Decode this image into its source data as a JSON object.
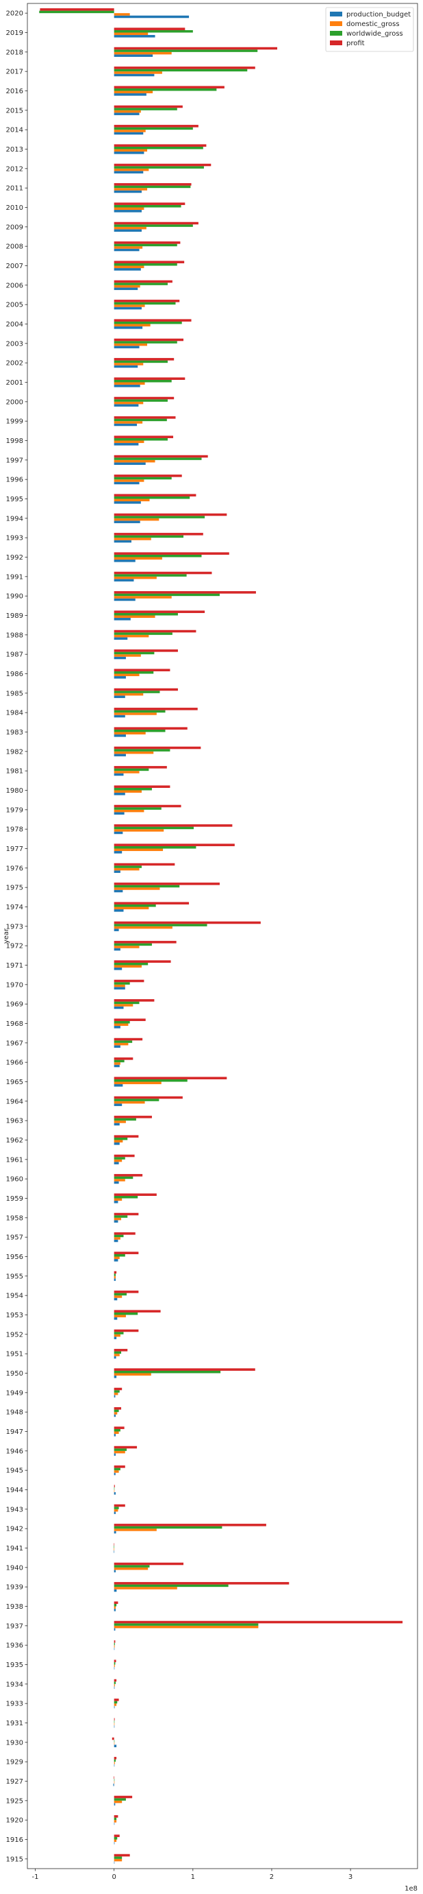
{
  "chart_data": {
    "type": "bar",
    "orientation": "horizontal",
    "ylabel": "year",
    "x_offset_label": "1e8",
    "x_ticks": [
      -1,
      0,
      1,
      2,
      3
    ],
    "x_tick_scale": 100000000,
    "xlim": [
      -110000000,
      385000000
    ],
    "legend_position": "top-right",
    "categories": [
      "1915",
      "1916",
      "1920",
      "1925",
      "1927",
      "1929",
      "1930",
      "1931",
      "1933",
      "1934",
      "1935",
      "1936",
      "1937",
      "1938",
      "1939",
      "1940",
      "1941",
      "1942",
      "1943",
      "1944",
      "1945",
      "1946",
      "1947",
      "1948",
      "1949",
      "1950",
      "1951",
      "1952",
      "1953",
      "1954",
      "1955",
      "1956",
      "1957",
      "1958",
      "1959",
      "1960",
      "1961",
      "1962",
      "1963",
      "1964",
      "1965",
      "1966",
      "1967",
      "1968",
      "1969",
      "1970",
      "1971",
      "1972",
      "1973",
      "1974",
      "1975",
      "1976",
      "1977",
      "1978",
      "1979",
      "1980",
      "1981",
      "1982",
      "1983",
      "1984",
      "1985",
      "1986",
      "1987",
      "1988",
      "1989",
      "1990",
      "1991",
      "1992",
      "1993",
      "1994",
      "1995",
      "1996",
      "1997",
      "1998",
      "1999",
      "2000",
      "2001",
      "2002",
      "2003",
      "2004",
      "2005",
      "2006",
      "2007",
      "2008",
      "2009",
      "2010",
      "2011",
      "2012",
      "2013",
      "2014",
      "2015",
      "2016",
      "2017",
      "2018",
      "2019",
      "2020"
    ],
    "series": [
      {
        "name": "production_budget",
        "color": "#1f77b4",
        "values": [
          200000,
          600000,
          200000,
          1400000,
          -1000000,
          300000,
          3000000,
          200000,
          700000,
          600000,
          500000,
          400000,
          1500000,
          2000000,
          3200000,
          2000000,
          -500000,
          2500000,
          2000000,
          2000000,
          1800000,
          2000000,
          2000000,
          2000000,
          1500000,
          3000000,
          2500000,
          3000000,
          4000000,
          4000000,
          2000000,
          5000000,
          5000000,
          5000000,
          5000000,
          6000000,
          6000000,
          7000000,
          7000000,
          10000000,
          11000000,
          7000000,
          8000000,
          8000000,
          12000000,
          14000000,
          10000000,
          8000000,
          6000000,
          12000000,
          11000000,
          8000000,
          10000000,
          11000000,
          13000000,
          14000000,
          12000000,
          15000000,
          15000000,
          14000000,
          14000000,
          15000000,
          15000000,
          17000000,
          21000000,
          27000000,
          25000000,
          27000000,
          22000000,
          33000000,
          34000000,
          32000000,
          40000000,
          31000000,
          29000000,
          31000000,
          33000000,
          30000000,
          32000000,
          36000000,
          35000000,
          30000000,
          34000000,
          32000000,
          35000000,
          35000000,
          35000000,
          37000000,
          38000000,
          37000000,
          32000000,
          41000000,
          51000000,
          49000000,
          52000000,
          95000000
        ]
      },
      {
        "name": "domestic_gross",
        "color": "#ff7f0e",
        "values": [
          10000000,
          3000000,
          3000000,
          10000000,
          200000,
          1000000,
          300000,
          500000,
          3000000,
          1000000,
          1000000,
          800000,
          183000000,
          2000000,
          80000000,
          43000000,
          -500000,
          54000000,
          5000000,
          500000,
          6000000,
          14000000,
          6000000,
          4000000,
          5000000,
          47000000,
          7000000,
          8000000,
          15000000,
          10000000,
          2000000,
          7000000,
          8000000,
          9000000,
          10000000,
          14000000,
          10000000,
          11000000,
          15000000,
          39000000,
          60000000,
          8000000,
          18000000,
          18000000,
          24000000,
          14000000,
          35000000,
          32000000,
          74000000,
          44000000,
          58000000,
          32000000,
          62000000,
          63000000,
          38000000,
          35000000,
          32000000,
          50000000,
          40000000,
          54000000,
          37000000,
          32000000,
          34000000,
          44000000,
          52000000,
          73000000,
          54000000,
          61000000,
          47000000,
          57000000,
          45000000,
          38000000,
          52000000,
          38000000,
          36000000,
          37000000,
          39000000,
          37000000,
          42000000,
          46000000,
          39000000,
          33000000,
          38000000,
          36000000,
          41000000,
          38000000,
          42000000,
          44000000,
          42000000,
          40000000,
          34000000,
          49000000,
          61000000,
          73000000,
          43000000,
          20000000
        ]
      },
      {
        "name": "worldwide_gross",
        "color": "#2ca02c",
        "values": [
          10000000,
          4000000,
          3000000,
          15000000,
          200000,
          2000000,
          300000,
          500000,
          4000000,
          2000000,
          1500000,
          1000000,
          183000000,
          3000000,
          145000000,
          45000000,
          -500000,
          137000000,
          6000000,
          500000,
          8000000,
          16000000,
          8000000,
          6000000,
          7000000,
          135000000,
          9000000,
          12000000,
          30000000,
          16000000,
          2000000,
          14000000,
          12000000,
          17000000,
          30000000,
          24000000,
          14000000,
          17000000,
          28000000,
          57000000,
          93000000,
          13000000,
          23000000,
          20000000,
          32000000,
          20000000,
          43000000,
          48000000,
          118000000,
          53000000,
          83000000,
          35000000,
          104000000,
          101000000,
          60000000,
          48000000,
          44000000,
          71000000,
          65000000,
          65000000,
          58000000,
          50000000,
          51000000,
          74000000,
          81000000,
          134000000,
          92000000,
          111000000,
          88000000,
          115000000,
          96000000,
          73000000,
          111000000,
          68000000,
          67000000,
          68000000,
          73000000,
          68000000,
          80000000,
          86000000,
          78000000,
          68000000,
          80000000,
          80000000,
          100000000,
          85000000,
          97000000,
          114000000,
          113000000,
          100000000,
          80000000,
          130000000,
          169000000,
          182000000,
          100000000,
          -95000000
        ]
      },
      {
        "name": "profit",
        "color": "#d62728",
        "values": [
          20000000,
          7000000,
          5000000,
          23000000,
          -600000,
          3000000,
          -2500000,
          800000,
          6000000,
          3000000,
          2500000,
          1500000,
          366000000,
          5000000,
          222000000,
          88000000,
          -200000,
          193000000,
          14000000,
          1000000,
          14000000,
          29000000,
          13000000,
          9000000,
          10000000,
          179000000,
          17000000,
          31000000,
          59000000,
          31000000,
          3000000,
          31000000,
          27000000,
          31000000,
          54000000,
          36000000,
          26000000,
          31000000,
          48000000,
          87000000,
          143000000,
          24000000,
          36000000,
          40000000,
          51000000,
          38000000,
          72000000,
          79000000,
          186000000,
          95000000,
          134000000,
          77000000,
          153000000,
          150000000,
          85000000,
          71000000,
          67000000,
          110000000,
          93000000,
          106000000,
          81000000,
          71000000,
          81000000,
          104000000,
          115000000,
          180000000,
          124000000,
          146000000,
          113000000,
          143000000,
          104000000,
          86000000,
          119000000,
          75000000,
          78000000,
          76000000,
          90000000,
          76000000,
          88000000,
          98000000,
          83000000,
          74000000,
          89000000,
          84000000,
          107000000,
          90000000,
          98000000,
          123000000,
          117000000,
          107000000,
          87000000,
          140000000,
          179000000,
          207000000,
          90000000,
          -94000000
        ]
      }
    ]
  }
}
